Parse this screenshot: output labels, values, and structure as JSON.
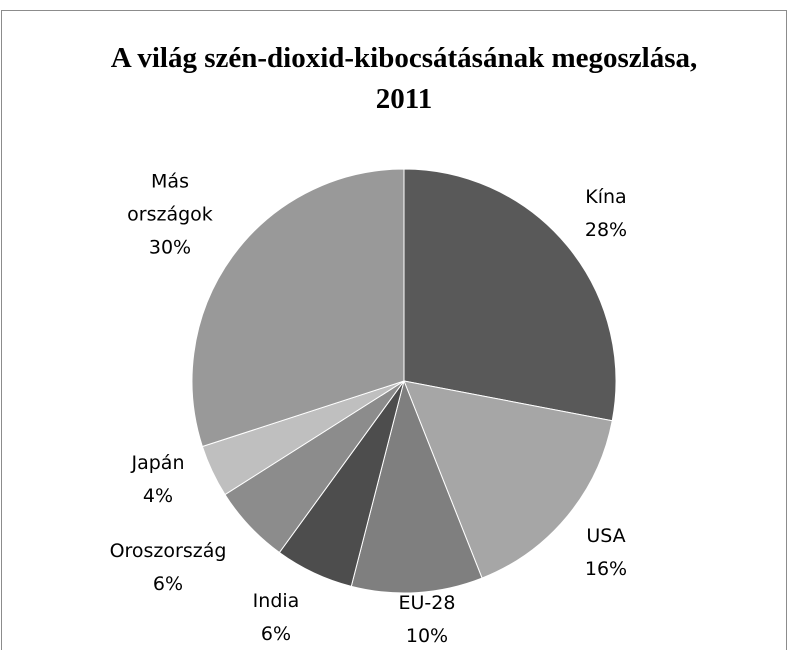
{
  "chart_data": {
    "type": "pie",
    "title": "A világ szén-dioxid-kibocsátásának megoszlása, 2011",
    "categories": [
      "Kína",
      "USA",
      "EU-28",
      "India",
      "Oroszország",
      "Japán",
      "Más országok"
    ],
    "values": [
      28,
      16,
      10,
      6,
      6,
      4,
      30
    ],
    "value_labels": [
      "28%",
      "16%",
      "10%",
      "6%",
      "6%",
      "4%",
      "30%"
    ],
    "colors": [
      "#595959",
      "#a6a6a6",
      "#7f7f7f",
      "#4d4d4d",
      "#8c8c8c",
      "#bfbfbf",
      "#999999"
    ]
  }
}
